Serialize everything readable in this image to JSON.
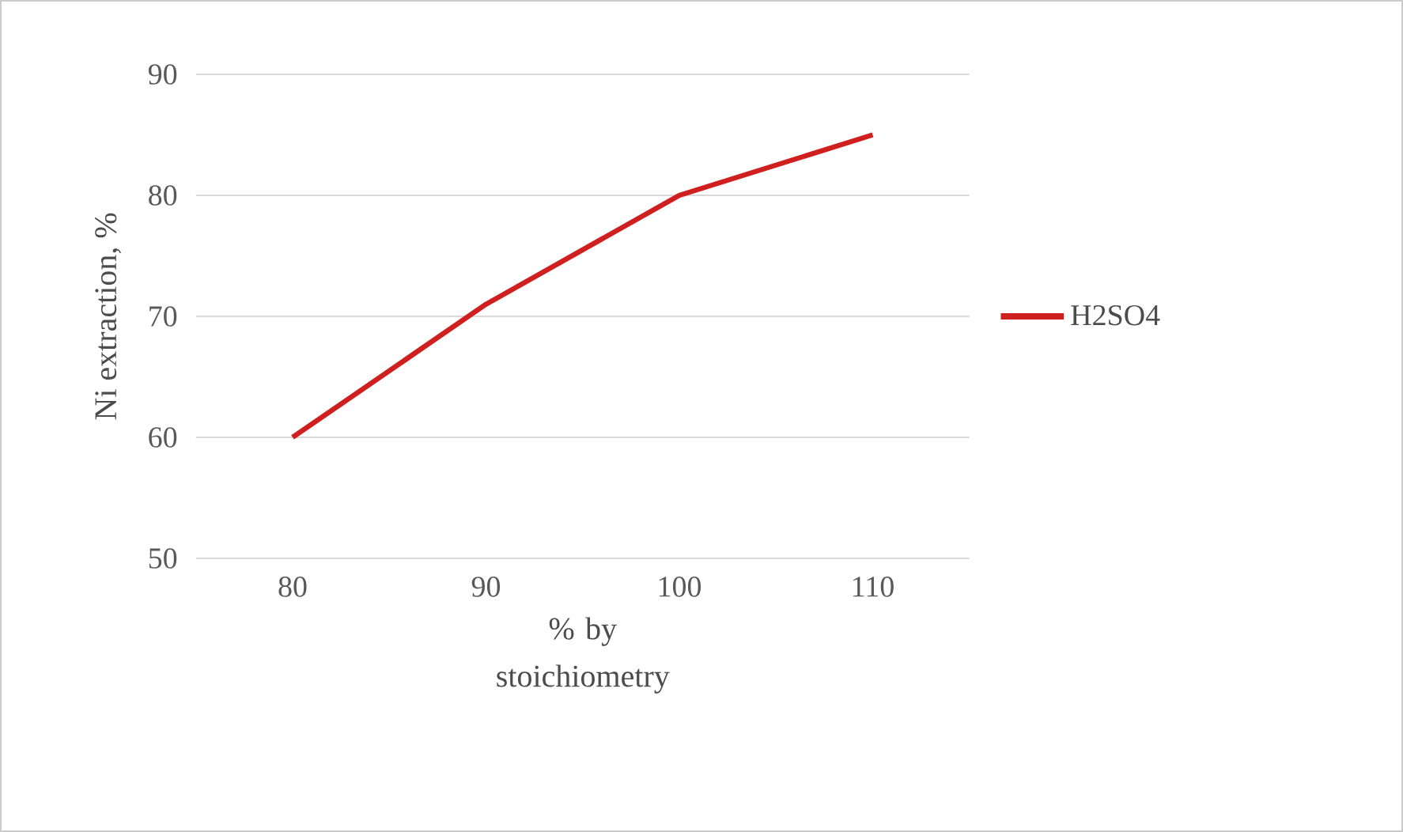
{
  "chart_data": {
    "type": "line",
    "xlabel": "% by stoichiometry",
    "ylabel": "Ni extraction, %",
    "categories": [
      "80",
      "90",
      "100",
      "110"
    ],
    "series": [
      {
        "name": "H2SO4",
        "color": "#d01f1f",
        "values": [
          60,
          71,
          80,
          85
        ]
      }
    ],
    "ylim": [
      50,
      90
    ],
    "yticks": [
      50,
      60,
      70,
      80,
      90
    ],
    "grid": "y",
    "legend": "right",
    "marker": "none",
    "line_style": "solid"
  }
}
